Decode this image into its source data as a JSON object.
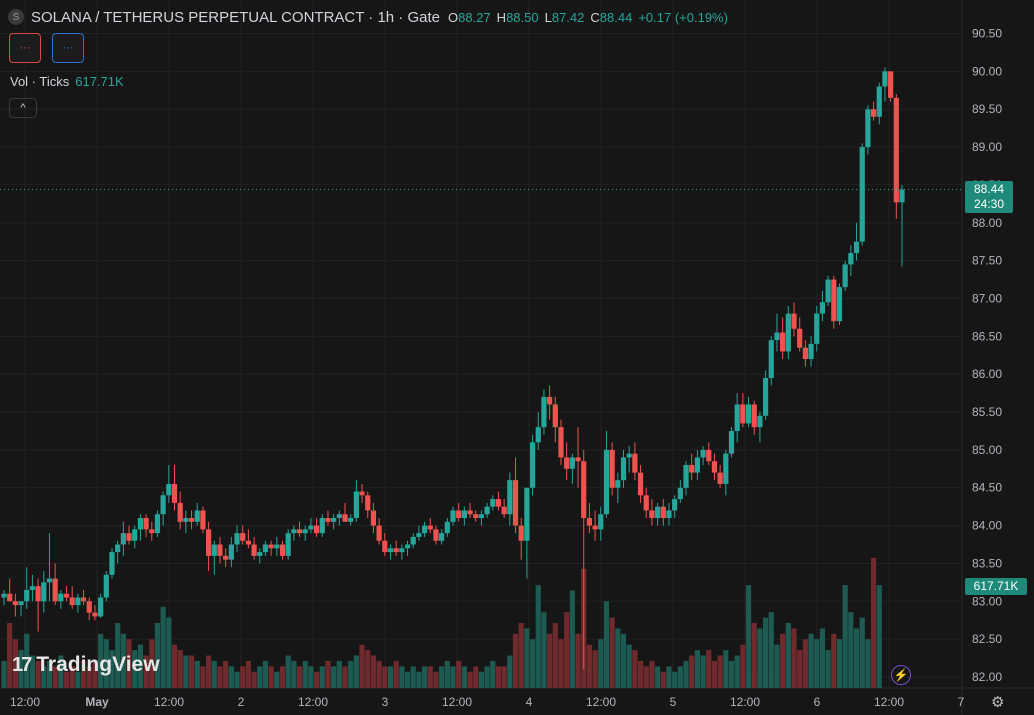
{
  "header": {
    "icon_letter": "S",
    "title": "SOLANA / TETHERUS PERPETUAL CONTRACT · 1h · Gate",
    "ohlc": [
      {
        "k": "O",
        "v": "88.27"
      },
      {
        "k": "H",
        "v": "88.50"
      },
      {
        "k": "L",
        "v": "87.42"
      },
      {
        "k": "C",
        "v": "88.44"
      },
      {
        "k": "",
        "v": "+0.17 (+0.19%)"
      }
    ]
  },
  "buttons": {
    "red_label": "···",
    "blue_label": "···",
    "collapse": "^"
  },
  "volume_legend": {
    "label": "Vol · Ticks",
    "value": "617.71K"
  },
  "price_tag": {
    "price": "88.44",
    "countdown": "24:30"
  },
  "volume_tag": "617.71K",
  "logo": {
    "mark": "17",
    "text": "TradingView"
  },
  "colors": {
    "up": "#26a69a",
    "down": "#ef5350",
    "vol_up": "#1d5a52",
    "vol_down": "#6e2a2c",
    "grid": "#222222",
    "background": "#161616"
  },
  "chart_data": {
    "type": "candlestick",
    "interval": "1h",
    "ylim": [
      81.9,
      90.55
    ],
    "y_ticks": [
      "90.50",
      "90.00",
      "89.50",
      "89.00",
      "88.50",
      "88.00",
      "87.50",
      "87.00",
      "86.50",
      "86.00",
      "85.50",
      "85.00",
      "84.50",
      "84.00",
      "83.50",
      "83.00",
      "82.50",
      "82.00"
    ],
    "x_ticks": [
      "12:00",
      "May",
      "12:00",
      "2",
      "12:00",
      "3",
      "12:00",
      "4",
      "12:00",
      "5",
      "12:00",
      "6",
      "12:00",
      "7"
    ],
    "last_close": 88.44,
    "candles": [
      [
        83.05,
        83.15,
        82.95,
        83.1
      ],
      [
        83.1,
        83.3,
        83.0,
        83.0
      ],
      [
        83.0,
        83.1,
        82.8,
        82.95
      ],
      [
        82.95,
        83.0,
        82.8,
        83.0
      ],
      [
        83.0,
        83.45,
        82.9,
        83.15
      ],
      [
        83.15,
        83.35,
        83.0,
        83.2
      ],
      [
        83.2,
        83.3,
        82.6,
        83.0
      ],
      [
        83.0,
        83.4,
        82.85,
        83.25
      ],
      [
        83.25,
        83.9,
        83.0,
        83.3
      ],
      [
        83.3,
        83.5,
        82.95,
        83.0
      ],
      [
        83.0,
        83.15,
        82.9,
        83.1
      ],
      [
        83.1,
        83.2,
        83.0,
        83.05
      ],
      [
        83.05,
        83.2,
        82.9,
        82.95
      ],
      [
        82.95,
        83.1,
        82.85,
        83.05
      ],
      [
        83.05,
        83.15,
        82.95,
        83.0
      ],
      [
        83.0,
        83.05,
        82.75,
        82.85
      ],
      [
        82.85,
        82.95,
        82.75,
        82.8
      ],
      [
        82.8,
        83.1,
        82.78,
        83.05
      ],
      [
        83.05,
        83.4,
        83.0,
        83.35
      ],
      [
        83.35,
        83.7,
        83.3,
        83.65
      ],
      [
        83.65,
        83.8,
        83.5,
        83.75
      ],
      [
        83.75,
        84.05,
        83.6,
        83.9
      ],
      [
        83.9,
        84.0,
        83.75,
        83.8
      ],
      [
        83.8,
        84.0,
        83.7,
        83.95
      ],
      [
        83.95,
        84.15,
        83.8,
        84.1
      ],
      [
        84.1,
        84.15,
        83.85,
        83.95
      ],
      [
        83.95,
        84.05,
        83.8,
        83.9
      ],
      [
        83.9,
        84.2,
        83.85,
        84.15
      ],
      [
        84.15,
        84.45,
        84.0,
        84.4
      ],
      [
        84.4,
        84.8,
        84.3,
        84.55
      ],
      [
        84.55,
        84.8,
        84.2,
        84.3
      ],
      [
        84.3,
        84.45,
        83.95,
        84.05
      ],
      [
        84.05,
        84.2,
        83.9,
        84.1
      ],
      [
        84.1,
        84.2,
        83.95,
        84.05
      ],
      [
        84.05,
        84.3,
        84.0,
        84.2
      ],
      [
        84.2,
        84.25,
        83.9,
        83.95
      ],
      [
        83.95,
        84.05,
        83.4,
        83.6
      ],
      [
        83.6,
        83.8,
        83.35,
        83.75
      ],
      [
        83.75,
        83.85,
        83.5,
        83.6
      ],
      [
        83.6,
        83.7,
        83.45,
        83.55
      ],
      [
        83.55,
        83.85,
        83.45,
        83.75
      ],
      [
        83.75,
        84.0,
        83.65,
        83.9
      ],
      [
        83.9,
        84.0,
        83.75,
        83.8
      ],
      [
        83.8,
        83.95,
        83.7,
        83.75
      ],
      [
        83.75,
        83.85,
        83.55,
        83.6
      ],
      [
        83.6,
        83.7,
        83.5,
        83.65
      ],
      [
        83.65,
        83.8,
        83.6,
        83.75
      ],
      [
        83.75,
        83.8,
        83.6,
        83.7
      ],
      [
        83.7,
        83.85,
        83.6,
        83.75
      ],
      [
        83.75,
        83.8,
        83.55,
        83.6
      ],
      [
        83.6,
        83.95,
        83.55,
        83.9
      ],
      [
        83.9,
        84.0,
        83.8,
        83.95
      ],
      [
        83.95,
        84.05,
        83.85,
        83.9
      ],
      [
        83.9,
        84.0,
        83.8,
        83.95
      ],
      [
        83.95,
        84.1,
        83.9,
        84.0
      ],
      [
        84.0,
        84.1,
        83.85,
        83.9
      ],
      [
        83.9,
        84.15,
        83.85,
        84.1
      ],
      [
        84.1,
        84.2,
        84.0,
        84.05
      ],
      [
        84.05,
        84.15,
        83.95,
        84.1
      ],
      [
        84.1,
        84.2,
        84.0,
        84.15
      ],
      [
        84.15,
        84.3,
        84.05,
        84.05
      ],
      [
        84.05,
        84.15,
        84.0,
        84.1
      ],
      [
        84.1,
        84.6,
        84.05,
        84.45
      ],
      [
        84.45,
        84.55,
        84.3,
        84.4
      ],
      [
        84.4,
        84.45,
        84.1,
        84.2
      ],
      [
        84.2,
        84.3,
        83.9,
        84.0
      ],
      [
        84.0,
        84.1,
        83.75,
        83.8
      ],
      [
        83.8,
        83.9,
        83.6,
        83.65
      ],
      [
        83.65,
        83.75,
        83.55,
        83.7
      ],
      [
        83.7,
        83.8,
        83.6,
        83.65
      ],
      [
        83.65,
        83.75,
        83.55,
        83.7
      ],
      [
        83.7,
        83.8,
        83.6,
        83.75
      ],
      [
        83.75,
        83.9,
        83.7,
        83.85
      ],
      [
        83.85,
        84.0,
        83.8,
        83.9
      ],
      [
        83.9,
        84.05,
        83.85,
        84.0
      ],
      [
        84.0,
        84.1,
        83.9,
        83.95
      ],
      [
        83.95,
        84.0,
        83.75,
        83.8
      ],
      [
        83.8,
        83.95,
        83.75,
        83.9
      ],
      [
        83.9,
        84.1,
        83.85,
        84.05
      ],
      [
        84.05,
        84.25,
        84.0,
        84.2
      ],
      [
        84.2,
        84.3,
        84.05,
        84.1
      ],
      [
        84.1,
        84.25,
        84.0,
        84.2
      ],
      [
        84.2,
        84.3,
        84.1,
        84.15
      ],
      [
        84.15,
        84.2,
        84.05,
        84.1
      ],
      [
        84.1,
        84.2,
        84.0,
        84.15
      ],
      [
        84.15,
        84.3,
        84.1,
        84.25
      ],
      [
        84.25,
        84.4,
        84.2,
        84.35
      ],
      [
        84.35,
        84.45,
        84.2,
        84.25
      ],
      [
        84.25,
        84.35,
        84.1,
        84.15
      ],
      [
        84.15,
        84.7,
        84.0,
        84.6
      ],
      [
        84.6,
        84.9,
        83.9,
        84.0
      ],
      [
        84.0,
        84.1,
        83.55,
        83.8
      ],
      [
        83.8,
        84.5,
        83.3,
        84.5
      ],
      [
        84.5,
        85.2,
        84.4,
        85.1
      ],
      [
        85.1,
        85.5,
        85.0,
        85.3
      ],
      [
        85.3,
        85.8,
        85.2,
        85.7
      ],
      [
        85.7,
        85.85,
        85.4,
        85.6
      ],
      [
        85.6,
        85.7,
        85.1,
        85.3
      ],
      [
        85.3,
        85.4,
        84.8,
        84.9
      ],
      [
        84.9,
        85.1,
        84.6,
        84.75
      ],
      [
        84.75,
        84.95,
        84.55,
        84.9
      ],
      [
        84.9,
        85.3,
        84.5,
        84.85
      ],
      [
        84.85,
        85.0,
        82.1,
        84.1
      ],
      [
        84.1,
        84.3,
        83.9,
        84.0
      ],
      [
        84.0,
        84.2,
        83.8,
        83.95
      ],
      [
        83.95,
        84.25,
        83.8,
        84.15
      ],
      [
        84.15,
        85.25,
        84.1,
        85.0
      ],
      [
        85.0,
        85.1,
        84.4,
        84.5
      ],
      [
        84.5,
        84.7,
        84.3,
        84.6
      ],
      [
        84.6,
        85.0,
        84.5,
        84.9
      ],
      [
        84.9,
        85.05,
        84.7,
        84.95
      ],
      [
        84.95,
        85.1,
        84.6,
        84.7
      ],
      [
        84.7,
        84.8,
        84.3,
        84.4
      ],
      [
        84.4,
        84.5,
        84.1,
        84.2
      ],
      [
        84.2,
        84.35,
        84.0,
        84.1
      ],
      [
        84.1,
        84.3,
        84.0,
        84.25
      ],
      [
        84.25,
        84.35,
        84.0,
        84.1
      ],
      [
        84.1,
        84.3,
        84.0,
        84.2
      ],
      [
        84.2,
        84.4,
        84.1,
        84.35
      ],
      [
        84.35,
        84.6,
        84.3,
        84.5
      ],
      [
        84.5,
        84.85,
        84.4,
        84.8
      ],
      [
        84.8,
        84.95,
        84.6,
        84.7
      ],
      [
        84.7,
        85.0,
        84.6,
        84.9
      ],
      [
        84.9,
        85.05,
        84.8,
        85.0
      ],
      [
        85.0,
        85.1,
        84.8,
        84.85
      ],
      [
        84.85,
        84.95,
        84.6,
        84.7
      ],
      [
        84.7,
        84.8,
        84.5,
        84.55
      ],
      [
        84.55,
        85.0,
        84.4,
        84.95
      ],
      [
        84.95,
        85.3,
        84.9,
        85.25
      ],
      [
        85.25,
        85.75,
        85.1,
        85.6
      ],
      [
        85.6,
        85.75,
        85.3,
        85.35
      ],
      [
        85.35,
        85.7,
        85.3,
        85.6
      ],
      [
        85.6,
        85.65,
        85.2,
        85.3
      ],
      [
        85.3,
        85.5,
        85.1,
        85.45
      ],
      [
        85.45,
        86.05,
        85.4,
        85.95
      ],
      [
        85.95,
        86.5,
        85.85,
        86.45
      ],
      [
        86.45,
        86.8,
        86.3,
        86.55
      ],
      [
        86.55,
        86.75,
        86.2,
        86.3
      ],
      [
        86.3,
        86.9,
        86.2,
        86.8
      ],
      [
        86.8,
        86.95,
        86.5,
        86.6
      ],
      [
        86.6,
        86.75,
        86.3,
        86.35
      ],
      [
        86.35,
        86.45,
        86.1,
        86.2
      ],
      [
        86.2,
        86.5,
        86.1,
        86.4
      ],
      [
        86.4,
        86.9,
        86.3,
        86.8
      ],
      [
        86.8,
        87.1,
        86.7,
        86.95
      ],
      [
        86.95,
        87.3,
        86.9,
        87.25
      ],
      [
        87.25,
        87.3,
        86.6,
        86.7
      ],
      [
        86.7,
        87.2,
        86.65,
        87.15
      ],
      [
        87.15,
        87.5,
        87.1,
        87.45
      ],
      [
        87.45,
        87.7,
        87.3,
        87.6
      ],
      [
        87.6,
        88.0,
        87.5,
        87.75
      ],
      [
        87.75,
        89.05,
        87.7,
        89.0
      ],
      [
        89.0,
        89.55,
        88.9,
        89.5
      ],
      [
        89.5,
        89.6,
        89.35,
        89.4
      ],
      [
        89.4,
        89.85,
        89.3,
        89.8
      ],
      [
        89.8,
        90.05,
        89.6,
        90.0
      ],
      [
        90.0,
        90.0,
        89.6,
        89.65
      ],
      [
        89.65,
        89.7,
        88.05,
        88.27
      ],
      [
        88.27,
        88.5,
        87.42,
        88.44
      ]
    ],
    "volumes": [
      0.25,
      0.6,
      0.45,
      0.35,
      0.5,
      0.3,
      0.25,
      0.2,
      0.25,
      0.2,
      0.3,
      0.15,
      0.2,
      0.15,
      0.25,
      0.2,
      0.25,
      0.5,
      0.45,
      0.35,
      0.6,
      0.5,
      0.45,
      0.35,
      0.4,
      0.3,
      0.45,
      0.6,
      0.75,
      0.65,
      0.4,
      0.35,
      0.3,
      0.3,
      0.25,
      0.2,
      0.3,
      0.25,
      0.2,
      0.25,
      0.2,
      0.15,
      0.2,
      0.25,
      0.15,
      0.2,
      0.25,
      0.2,
      0.15,
      0.2,
      0.3,
      0.25,
      0.2,
      0.25,
      0.2,
      0.15,
      0.2,
      0.25,
      0.2,
      0.25,
      0.2,
      0.25,
      0.3,
      0.4,
      0.35,
      0.3,
      0.25,
      0.2,
      0.2,
      0.25,
      0.2,
      0.15,
      0.2,
      0.15,
      0.2,
      0.2,
      0.15,
      0.2,
      0.25,
      0.2,
      0.25,
      0.2,
      0.15,
      0.2,
      0.15,
      0.2,
      0.25,
      0.2,
      0.2,
      0.3,
      0.5,
      0.6,
      0.55,
      0.45,
      0.95,
      0.7,
      0.5,
      0.6,
      0.45,
      0.7,
      0.9,
      0.5,
      1.1,
      0.4,
      0.35,
      0.45,
      0.8,
      0.65,
      0.55,
      0.5,
      0.4,
      0.35,
      0.25,
      0.2,
      0.25,
      0.2,
      0.15,
      0.2,
      0.15,
      0.2,
      0.25,
      0.3,
      0.35,
      0.3,
      0.35,
      0.25,
      0.3,
      0.35,
      0.25,
      0.3,
      0.4,
      0.95,
      0.6,
      0.55,
      0.65,
      0.7,
      0.4,
      0.5,
      0.6,
      0.55,
      0.35,
      0.45,
      0.5,
      0.45,
      0.55,
      0.35,
      0.5,
      0.45,
      0.95,
      0.7,
      0.55,
      0.65,
      0.45,
      1.2,
      0.95
    ]
  }
}
